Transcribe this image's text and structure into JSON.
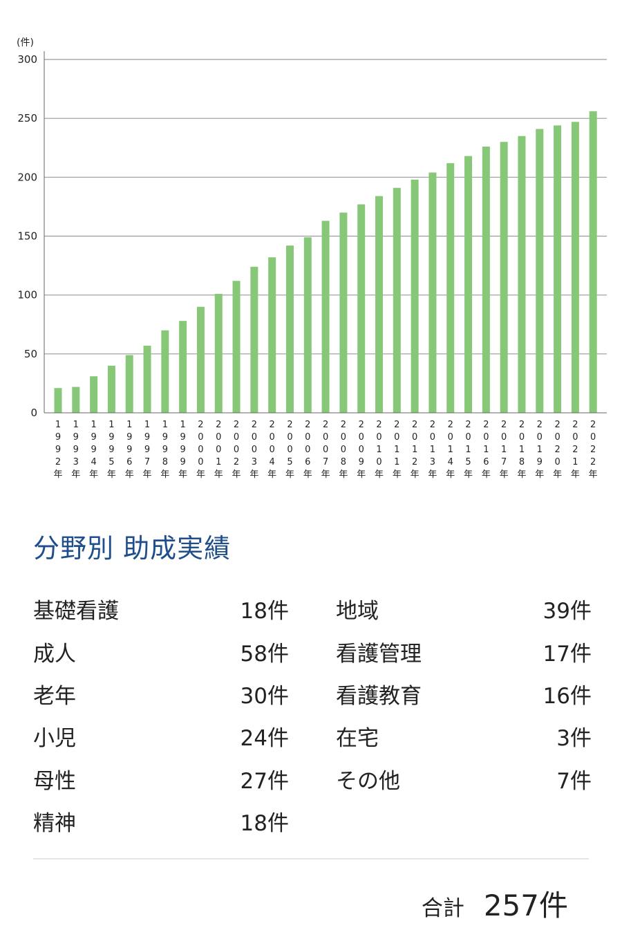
{
  "chart_data": {
    "type": "bar",
    "unit_label": "(件)",
    "categories": [
      "1992年",
      "1993年",
      "1994年",
      "1995年",
      "1996年",
      "1997年",
      "1998年",
      "1999年",
      "2000年",
      "2001年",
      "2002年",
      "2003年",
      "2004年",
      "2005年",
      "2006年",
      "2007年",
      "2008年",
      "2009年",
      "2010年",
      "2011年",
      "2012年",
      "2013年",
      "2014年",
      "2015年",
      "2016年",
      "2017年",
      "2018年",
      "2019年",
      "2020年",
      "2021年",
      "2022年"
    ],
    "values": [
      21,
      22,
      31,
      40,
      49,
      57,
      70,
      78,
      90,
      101,
      112,
      124,
      132,
      142,
      149,
      163,
      170,
      177,
      184,
      191,
      198,
      204,
      212,
      218,
      226,
      230,
      235,
      241,
      244,
      247,
      256
    ],
    "ylim": [
      0,
      300
    ],
    "yticks": [
      0,
      50,
      100,
      150,
      200,
      250,
      300
    ],
    "bar_color": "#86c878",
    "grid": true
  },
  "section_title": "分野別 助成実績",
  "fields_left": [
    {
      "name": "基礎看護",
      "count": "18件"
    },
    {
      "name": "成人",
      "count": "58件"
    },
    {
      "name": "老年",
      "count": "30件"
    },
    {
      "name": "小児",
      "count": "24件"
    },
    {
      "name": "母性",
      "count": "27件"
    },
    {
      "name": "精神",
      "count": "18件"
    }
  ],
  "fields_right": [
    {
      "name": "地域",
      "count": "39件"
    },
    {
      "name": "看護管理",
      "count": "17件"
    },
    {
      "name": "看護教育",
      "count": "16件"
    },
    {
      "name": "在宅",
      "count": "3件"
    },
    {
      "name": "その他",
      "count": "7件"
    }
  ],
  "total": {
    "label": "合計",
    "value": "257件"
  }
}
